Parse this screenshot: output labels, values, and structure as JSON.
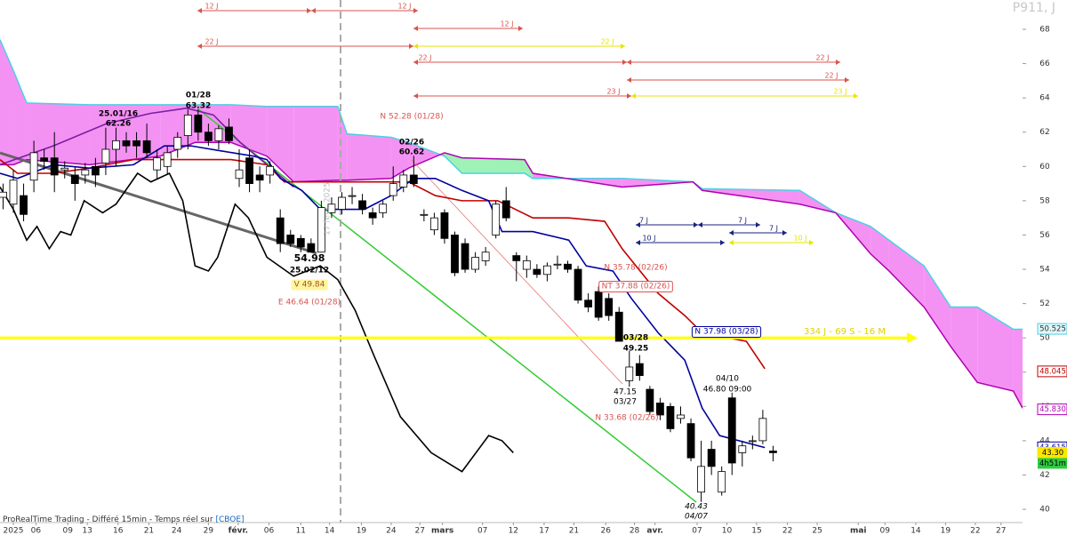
{
  "chart_data": {
    "type": "candlestick",
    "title": "P911, J",
    "source": "ProRealTime Trading - Différé 15min - Temps réel sur",
    "source_link": "[CBOE]",
    "date_marker": "17 févr. 2025",
    "xlim": [
      -1.3,
      98.3
    ],
    "ylim": [
      38.5,
      69.71
    ],
    "yticks": [
      40,
      42,
      44,
      46,
      48,
      50,
      52,
      54,
      56,
      58,
      60,
      62,
      64,
      66,
      68
    ],
    "xticks": [
      {
        "value": 0,
        "label": "2025"
      },
      {
        "value": 2.2,
        "label": "06"
      },
      {
        "value": 5.3,
        "label": "09"
      },
      {
        "value": 7.2,
        "label": "13"
      },
      {
        "value": 10.2,
        "label": "16"
      },
      {
        "value": 13.2,
        "label": "21"
      },
      {
        "value": 15.9,
        "label": "24"
      },
      {
        "value": 19.0,
        "label": "29"
      },
      {
        "value": 21.9,
        "label": "févr."
      },
      {
        "value": 24.9,
        "label": "06"
      },
      {
        "value": 28.0,
        "label": "11"
      },
      {
        "value": 30.8,
        "label": "14"
      },
      {
        "value": 33.9,
        "label": "19"
      },
      {
        "value": 36.8,
        "label": "24"
      },
      {
        "value": 39.6,
        "label": "27"
      },
      {
        "value": 41.8,
        "label": "mars"
      },
      {
        "value": 45.7,
        "label": "07"
      },
      {
        "value": 48.7,
        "label": "12"
      },
      {
        "value": 51.7,
        "label": "17"
      },
      {
        "value": 54.6,
        "label": "21"
      },
      {
        "value": 57.7,
        "label": "26"
      },
      {
        "value": 60.5,
        "label": "28"
      },
      {
        "value": 62.5,
        "label": "avr."
      },
      {
        "value": 66.6,
        "label": "07"
      },
      {
        "value": 69.5,
        "label": "10"
      },
      {
        "value": 72.4,
        "label": "15"
      },
      {
        "value": 75.4,
        "label": "22"
      },
      {
        "value": 78.3,
        "label": "25"
      },
      {
        "value": 82.3,
        "label": "mai"
      },
      {
        "value": 84.9,
        "label": "09"
      },
      {
        "value": 87.9,
        "label": "14"
      },
      {
        "value": 90.8,
        "label": "19"
      },
      {
        "value": 93.7,
        "label": "22"
      },
      {
        "value": 96.2,
        "label": "27"
      }
    ],
    "x": [
      -1,
      0,
      1,
      2,
      3,
      4,
      5,
      6,
      7,
      8,
      9,
      10,
      11,
      12,
      13,
      14,
      15,
      16,
      17,
      18,
      19,
      20,
      21,
      22,
      23,
      24,
      25,
      26,
      27,
      28,
      29,
      30,
      31,
      32,
      33,
      34,
      35,
      36,
      37,
      38,
      39,
      40,
      41,
      42,
      43,
      44,
      45,
      46,
      47,
      48,
      49,
      50,
      51,
      52,
      53,
      54,
      55,
      56,
      57,
      58,
      59,
      60,
      61,
      62,
      63,
      64,
      65,
      66,
      67,
      68,
      69,
      70,
      71,
      72,
      73,
      74
    ],
    "open": [
      58.2,
      57.8,
      58.3,
      59.2,
      60.5,
      60.5,
      59.8,
      59.5,
      59.5,
      60.0,
      60.2,
      61.0,
      61.5,
      61.5,
      61.5,
      59.8,
      60.0,
      61.0,
      61.8,
      63.0,
      62.0,
      61.5,
      62.3,
      59.3,
      60.5,
      59.5,
      59.5,
      57.0,
      56.0,
      55.8,
      55.5,
      55.0,
      57.3,
      57.5,
      58.3,
      58.0,
      57.3,
      57.3,
      58.3,
      58.8,
      59.5,
      57.2,
      56.3,
      57.3,
      56.0,
      55.5,
      54.0,
      54.5,
      56.0,
      58.0,
      54.8,
      54.0,
      54.0,
      53.7,
      54.3,
      54.3,
      54.0,
      52.2,
      52.7,
      52.3,
      51.5,
      47.5,
      48.5,
      47.0,
      46.2,
      46.0,
      45.3,
      45.0,
      41.0,
      43.5,
      41.0,
      46.5,
      43.3,
      44.0,
      44.0,
      43.4
    ],
    "high": [
      59.0,
      59.8,
      59.0,
      61.5,
      61.0,
      62.0,
      60.3,
      60.0,
      60.2,
      60.5,
      62.26,
      62.26,
      62.0,
      62.0,
      62.5,
      61.0,
      61.2,
      62.0,
      63.32,
      63.32,
      62.5,
      62.4,
      62.8,
      61.0,
      61.0,
      60.0,
      60.3,
      57.5,
      56.3,
      56.0,
      55.8,
      58.0,
      58.2,
      58.5,
      58.8,
      58.4,
      57.6,
      58.0,
      60.0,
      59.8,
      60.62,
      57.5,
      57.3,
      57.5,
      56.2,
      55.8,
      55.0,
      55.3,
      58.0,
      58.8,
      55.0,
      54.8,
      54.3,
      54.4,
      54.8,
      54.5,
      54.2,
      52.6,
      53.0,
      52.6,
      51.8,
      49.25,
      49.0,
      47.2,
      46.5,
      46.2,
      46.0,
      45.3,
      44.0,
      44.0,
      42.5,
      46.8,
      44.0,
      44.3,
      45.8,
      43.7
    ],
    "low": [
      57.5,
      57.3,
      56.8,
      58.5,
      59.8,
      58.5,
      59.3,
      58.0,
      59.0,
      58.8,
      59.5,
      60.0,
      60.8,
      60.5,
      60.5,
      59.3,
      59.5,
      60.5,
      61.0,
      61.5,
      61.2,
      61.0,
      61.3,
      58.8,
      58.5,
      58.5,
      59.0,
      55.0,
      55.3,
      55.0,
      54.98,
      54.98,
      57.0,
      57.2,
      57.8,
      57.2,
      56.6,
      57.0,
      58.0,
      58.5,
      58.8,
      56.8,
      56.0,
      55.5,
      53.6,
      53.8,
      53.8,
      54.2,
      55.8,
      56.8,
      53.3,
      53.5,
      53.5,
      53.3,
      54.0,
      53.8,
      52.0,
      51.5,
      51.0,
      51.0,
      49.8,
      47.15,
      47.5,
      45.5,
      45.2,
      44.5,
      45.0,
      42.8,
      40.43,
      42.0,
      40.8,
      42.0,
      42.5,
      43.5,
      43.8,
      42.8
    ],
    "close": [
      58.5,
      59.2,
      57.2,
      60.8,
      60.3,
      59.5,
      59.9,
      59.0,
      59.8,
      59.5,
      61.0,
      61.5,
      61.2,
      61.2,
      60.8,
      60.5,
      60.8,
      61.7,
      63.0,
      62.0,
      61.5,
      62.2,
      61.5,
      59.8,
      59.0,
      59.2,
      60.0,
      55.5,
      55.5,
      55.3,
      55.0,
      57.6,
      57.8,
      58.2,
      58.3,
      57.5,
      57.0,
      57.8,
      59.0,
      59.5,
      59.0,
      57.2,
      57.0,
      55.8,
      53.8,
      54.0,
      54.7,
      55.0,
      57.8,
      57.0,
      54.5,
      54.5,
      53.7,
      54.2,
      54.3,
      54.0,
      52.2,
      51.8,
      51.2,
      51.3,
      49.8,
      48.3,
      47.8,
      45.7,
      45.5,
      44.7,
      45.5,
      43.0,
      42.5,
      42.5,
      42.2,
      42.7,
      43.7,
      44.0,
      45.3,
      43.3
    ],
    "up_color": "#ffffff",
    "down_color": "#000000",
    "cloud": {
      "x": [
        -1.3,
        0,
        1.3,
        7.4,
        14.3,
        17.7,
        21.2,
        24.7,
        27.3,
        31.6,
        32.5,
        36.8,
        38.5,
        42.0,
        43.7,
        49.8,
        50.6,
        59.3,
        66.2,
        67.1,
        76.6,
        80.1,
        83.5,
        85.3,
        88.7,
        91.3,
        93.9,
        97.4,
        98.3
      ],
      "span_a": {
        "color": "#4dd0e1",
        "values": [
          67.4,
          65.6,
          63.7,
          63.6,
          63.6,
          63.6,
          63.6,
          63.5,
          63.5,
          63.5,
          61.9,
          61.7,
          61.4,
          60.6,
          59.6,
          59.6,
          59.3,
          59.3,
          59.1,
          58.7,
          58.6,
          57.3,
          56.5,
          55.7,
          54.2,
          51.8,
          51.8,
          50.5,
          50.5
        ]
      },
      "span_b": {
        "color": "#b000b0",
        "values": [
          60.1,
          60.1,
          60.4,
          60.1,
          60.6,
          61.4,
          61.4,
          60.6,
          59.1,
          59.2,
          59.2,
          59.3,
          59.9,
          60.8,
          60.5,
          60.4,
          59.6,
          58.8,
          59.1,
          58.6,
          57.8,
          57.3,
          54.9,
          53.9,
          51.8,
          49.5,
          47.4,
          46.9,
          45.9
        ]
      },
      "up_fill": "#f27ff2",
      "down_fill": "#8ef0a8"
    },
    "lines": [
      {
        "color": "#7a1fa2",
        "x": [
          -1.3,
          3.9,
          9.1,
          13.4,
          16.9,
          19.5,
          22.1,
          24.7,
          27.3
        ],
        "values": [
          60.1,
          61.2,
          62.5,
          63.1,
          63.4,
          63.0,
          61.4,
          60.1,
          58.8
        ]
      },
      {
        "color": "#c00000",
        "x": [
          -1.3,
          0.4,
          3.9,
          7.4,
          11.7,
          16.0,
          21.2,
          24.7,
          26.4,
          29.9,
          38.5,
          41.1,
          43.7,
          47.2,
          50.6,
          54.1,
          57.6,
          59.3,
          62.8,
          65.4,
          67.1,
          71.4,
          73.2
        ],
        "values": [
          60.4,
          59.6,
          59.6,
          59.9,
          60.4,
          60.4,
          60.4,
          60.1,
          59.1,
          59.1,
          59.1,
          58.3,
          58.0,
          58.0,
          57.0,
          57.0,
          56.8,
          55.2,
          52.6,
          51.3,
          50.3,
          49.8,
          48.2
        ]
      },
      {
        "color": "#0000a0",
        "x": [
          -1.3,
          0.4,
          3.9,
          7.4,
          11.7,
          14.7,
          17.3,
          20.3,
          23.4,
          24.7,
          26.0,
          28.1,
          29.9,
          31.6,
          34.2,
          36.8,
          39.0,
          41.1,
          43.7,
          46.3,
          47.6,
          50.6,
          54.1,
          55.8,
          58.4,
          60.2,
          62.8,
          65.4,
          67.1,
          68.8,
          73.2
        ],
        "values": [
          59.6,
          59.3,
          60.1,
          59.9,
          60.1,
          61.2,
          61.2,
          60.9,
          60.6,
          60.4,
          59.3,
          58.6,
          57.5,
          57.5,
          57.5,
          58.3,
          59.3,
          59.3,
          58.6,
          58.0,
          56.2,
          56.2,
          55.7,
          54.2,
          53.9,
          52.3,
          50.3,
          48.7,
          45.9,
          44.3,
          43.6
        ]
      },
      {
        "color": "#000000",
        "x": [
          -1.3,
          0,
          1.3,
          2.3,
          3.5,
          4.6,
          5.6,
          6.9,
          8.7,
          10.0,
          12.1,
          13.4,
          15.2,
          16.5,
          17.7,
          19.0,
          19.9,
          21.6,
          22.9,
          24.7,
          27.3,
          29.9,
          31.6,
          33.3,
          35.1,
          37.7,
          40.7,
          43.7,
          46.3,
          47.6,
          48.7
        ],
        "values": [
          58.8,
          57.5,
          55.7,
          56.5,
          55.2,
          56.2,
          56.0,
          58.0,
          57.3,
          57.8,
          59.6,
          59.1,
          59.6,
          58.0,
          54.2,
          53.9,
          54.7,
          57.8,
          57.0,
          54.7,
          53.6,
          54.2,
          53.4,
          51.6,
          49.0,
          45.4,
          43.3,
          42.2,
          44.3,
          44.0,
          43.3
        ]
      }
    ],
    "level": {
      "value": 50,
      "label": "334 J - 69 S - 16 M",
      "color": "#ffff00",
      "label_color": "#e0d000"
    },
    "price_tags": [
      {
        "value": 50.525,
        "label": "50.525",
        "color": "#333333",
        "background": "#e0f7fa",
        "border": "#4dd0e1"
      },
      {
        "value": 48.045,
        "label": "48.045",
        "color": "#c00000",
        "background": "#ffffff",
        "border": "#c00000"
      },
      {
        "value": 45.83,
        "label": "45.830",
        "color": "#b000b0",
        "background": "#ffffff",
        "border": "#b000b0"
      },
      {
        "value": 43.615,
        "label": "43.615",
        "color": "#0000a0",
        "background": "#ffffff",
        "border": "#0000a0"
      },
      {
        "value": 43.3,
        "label": "43.30",
        "color": "#000000",
        "background": "#ffe600",
        "border": "#ffe600"
      }
    ],
    "timer": {
      "label": "4h51m",
      "background": "#2ecc40"
    },
    "ranges": [
      {
        "label": "12 J",
        "color": "#d9534f"
      },
      {
        "label": "12 J",
        "color": "#d9534f"
      },
      {
        "label": "12 J",
        "color": "#d9534f"
      },
      {
        "label": "22 J",
        "color": "#d9534f"
      },
      {
        "label": "22 J",
        "color": "#e6e600"
      },
      {
        "label": "22 J",
        "color": "#d9534f"
      },
      {
        "label": "22 J",
        "color": "#d9534f"
      },
      {
        "label": "22 J",
        "color": "#d9534f"
      },
      {
        "label": "23 J",
        "color": "#d9534f"
      },
      {
        "label": "23 J",
        "color": "#e6e600"
      },
      {
        "label": "7 J",
        "color": "#1a237e"
      },
      {
        "label": "7 J",
        "color": "#1a237e"
      },
      {
        "label": "7 J",
        "color": "#1a237e"
      },
      {
        "label": "10 J",
        "color": "#1a237e"
      },
      {
        "label": "10 J",
        "color": "#e6e600"
      }
    ],
    "annotations": [
      {
        "text": "01/28",
        "color": "#000000"
      },
      {
        "text": "63.32",
        "color": "#000000"
      },
      {
        "text": "25.01/16",
        "color": "#000000"
      },
      {
        "text": "62.26",
        "color": "#000000"
      },
      {
        "text": "02/26",
        "color": "#000000"
      },
      {
        "text": "60.62",
        "color": "#000000"
      },
      {
        "text": "54.98",
        "color": "#000000"
      },
      {
        "text": "25.02/12",
        "color": "#000000"
      },
      {
        "text": "V 49.84",
        "color": "#a0522d",
        "background": "#fff59d"
      },
      {
        "text": "E 46.64 (01/28)",
        "color": "#d9534f"
      },
      {
        "text": "N 52.28 (01/28)",
        "color": "#d9534f"
      },
      {
        "text": "N 35.78 (02/26)",
        "color": "#d9534f"
      },
      {
        "text": "NT 37.88 (02/26)",
        "color": "#d9534f",
        "border": "#d9534f"
      },
      {
        "text": "N 37.98 (03/28)",
        "color": "#0000a0",
        "border": "#0000a0"
      },
      {
        "text": "03/28",
        "color": "#000000"
      },
      {
        "text": "49.25",
        "color": "#000000"
      },
      {
        "text": "47.15",
        "color": "#000000"
      },
      {
        "text": "03/27",
        "color": "#000000"
      },
      {
        "text": "04/10",
        "color": "#000000"
      },
      {
        "text": "46.80  09:00",
        "color": "#000000"
      },
      {
        "text": "N 33.68 (02/26)",
        "color": "#d9534f"
      },
      {
        "text": "40.43",
        "color": "#000000"
      },
      {
        "text": "04/07",
        "color": "#000000"
      }
    ]
  }
}
